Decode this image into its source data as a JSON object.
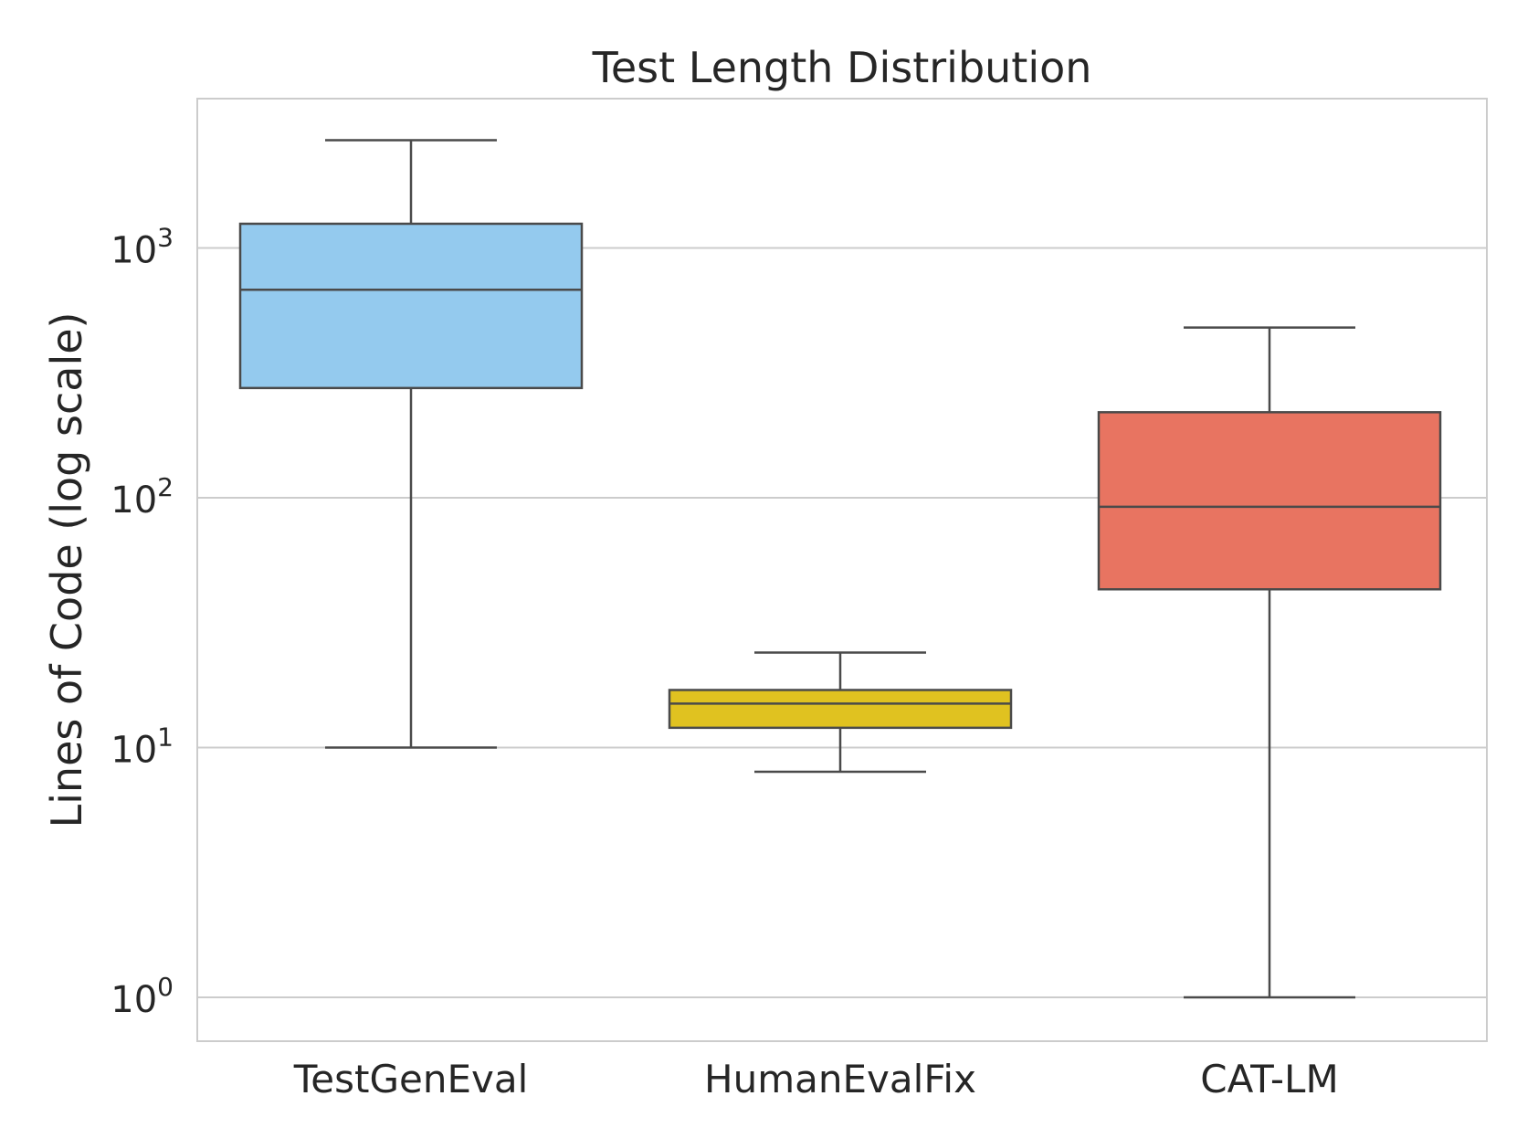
{
  "chart_data": {
    "type": "boxplot",
    "title": "Test Length Distribution",
    "xlabel": "",
    "ylabel": "Lines of Code (log scale)",
    "yscale": "log",
    "ylim": [
      0.84,
      3850
    ],
    "yticks": [
      {
        "value": 1,
        "base": "10",
        "exp": "0"
      },
      {
        "value": 10,
        "base": "10",
        "exp": "1"
      },
      {
        "value": 100,
        "base": "10",
        "exp": "2"
      },
      {
        "value": 1000,
        "base": "10",
        "exp": "3"
      }
    ],
    "grid": true,
    "categories": [
      "TestGenEval",
      "HumanEvalFix",
      "CAT-LM"
    ],
    "boxes": [
      {
        "name": "TestGenEval",
        "whisker_low": 10,
        "q1": 275,
        "median": 680,
        "q3": 1250,
        "whisker_high": 2700,
        "color": "#94CAEE"
      },
      {
        "name": "HumanEvalFix",
        "whisker_low": 8,
        "q1": 12,
        "median": 15,
        "q3": 17,
        "whisker_high": 24,
        "color": "#E0C220"
      },
      {
        "name": "CAT-LM",
        "whisker_low": 1,
        "q1": 43,
        "median": 92,
        "q3": 220,
        "whisker_high": 480,
        "color": "#E87461"
      }
    ]
  }
}
